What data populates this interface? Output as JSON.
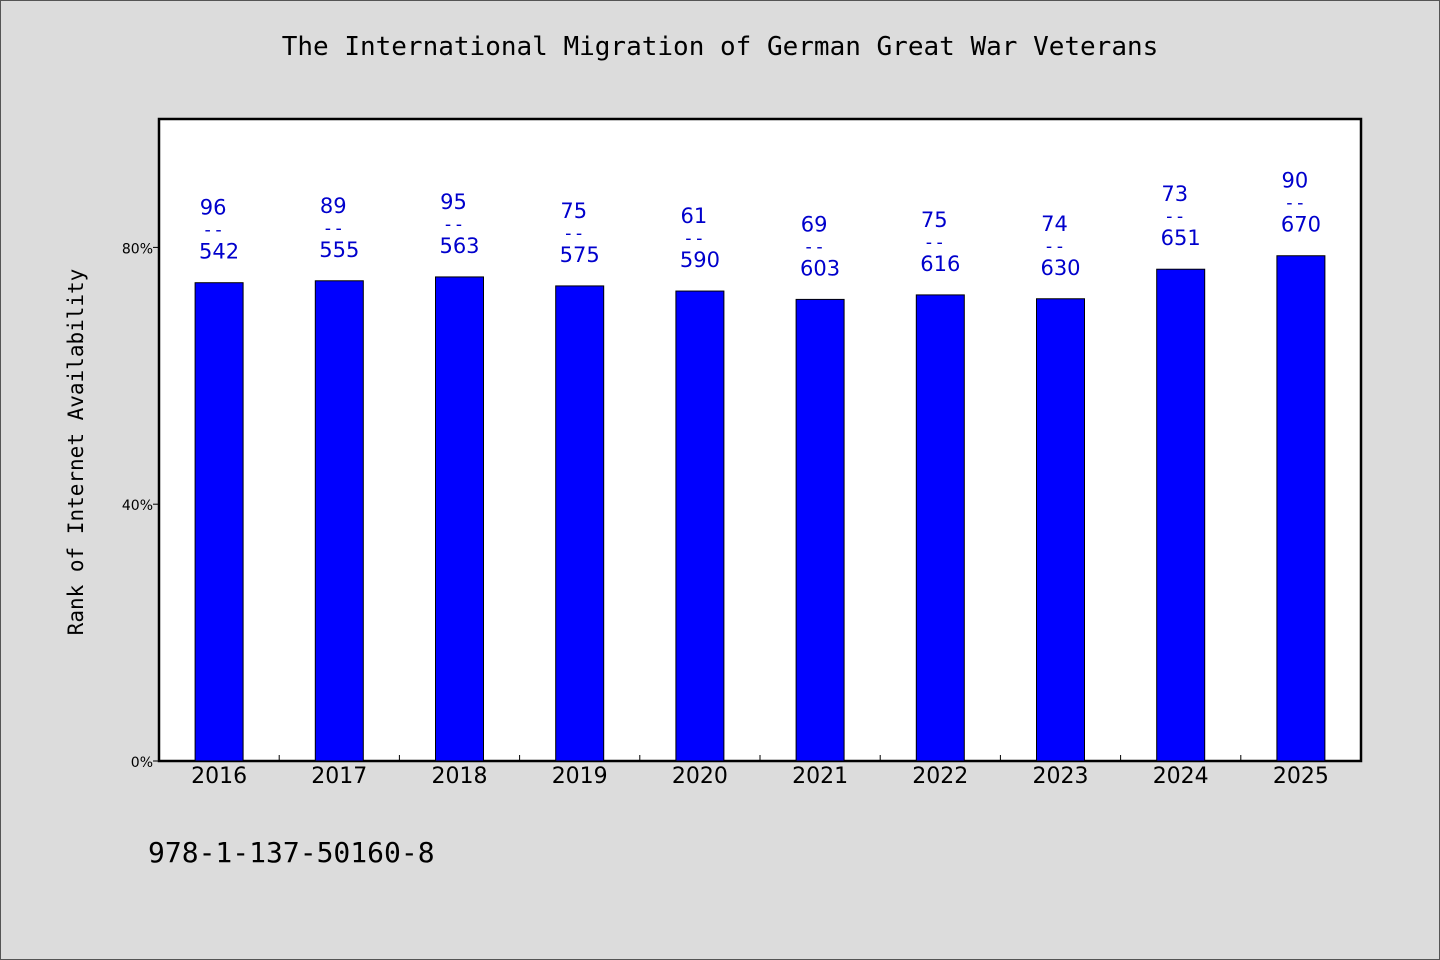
{
  "chart_data": {
    "type": "bar",
    "title": "The International Migration of German Great War Veterans",
    "ylabel": "Rank of Internet Availability",
    "xlabel": "",
    "categories": [
      "2016",
      "2017",
      "2018",
      "2019",
      "2020",
      "2021",
      "2022",
      "2023",
      "2024",
      "2025"
    ],
    "values": [
      74.5,
      74.8,
      75.4,
      74.0,
      73.2,
      71.9,
      72.6,
      72.0,
      76.6,
      78.7
    ],
    "label_top": [
      "96",
      "89",
      "95",
      "75",
      "61",
      "69",
      "75",
      "74",
      "73",
      "90"
    ],
    "label_bottom": [
      "542",
      "555",
      "563",
      "575",
      "590",
      "603",
      "616",
      "630",
      "651",
      "670"
    ],
    "label_separator": "--",
    "ylim": [
      0,
      100
    ],
    "yticks": [
      0,
      40,
      80
    ],
    "ytick_labels": [
      "0%",
      "40%",
      "80%"
    ],
    "grid": false,
    "bar_color": "#0000ff",
    "label_color": "#0000cc"
  },
  "footer": {
    "isbn": "978-1-137-50160-8"
  }
}
